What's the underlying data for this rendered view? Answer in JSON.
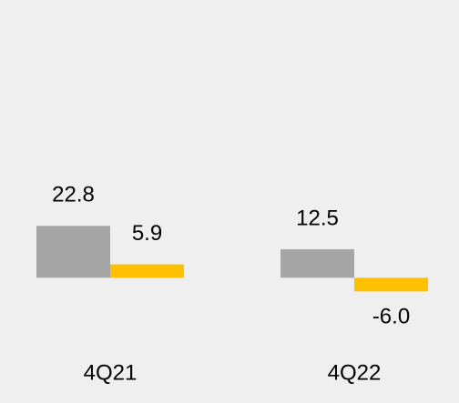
{
  "chart_data": {
    "type": "bar",
    "categories": [
      "4Q21",
      "4Q22"
    ],
    "series": [
      {
        "color": "#a5a5a5",
        "values": [
          22.8,
          12.5
        ]
      },
      {
        "color": "#ffc000",
        "values": [
          5.9,
          -6.0
        ],
        "value_labels": [
          "5.9",
          "-6.0"
        ]
      }
    ],
    "ylim": [
      -55,
      122
    ]
  }
}
